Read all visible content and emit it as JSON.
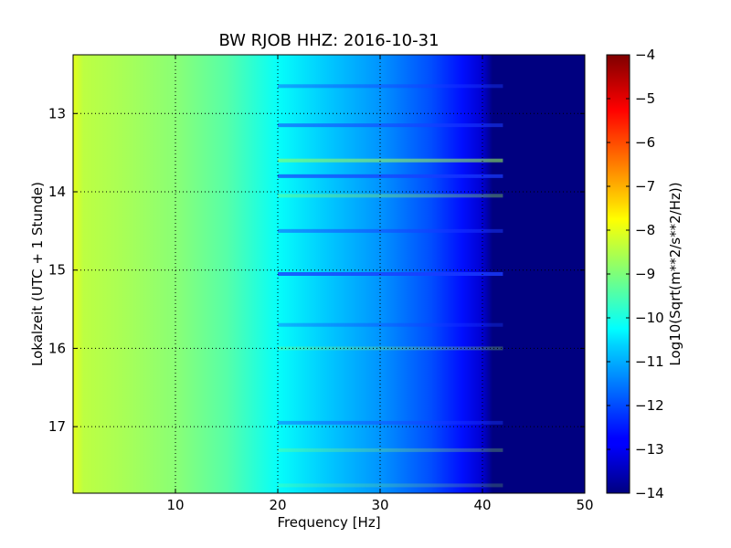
{
  "chart_data": {
    "type": "heatmap",
    "title": "BW RJOB HHZ: 2016-10-31",
    "xlabel": "Frequency [Hz]",
    "ylabel": "Lokalzeit (UTC + 1 Stunde)",
    "colorbar_label": "Log10(Sqrt(m**2/s**2/Hz))",
    "xlim": [
      0,
      50
    ],
    "ylim": [
      17.85,
      12.25
    ],
    "y_axis_inverted": true,
    "xticks": [
      10,
      20,
      30,
      40,
      50
    ],
    "xtick_labels": [
      "10",
      "20",
      "30",
      "40",
      "50"
    ],
    "yticks": [
      13,
      14,
      15,
      16,
      17
    ],
    "ytick_labels": [
      "13",
      "14",
      "15",
      "16",
      "17"
    ],
    "clim": [
      -14,
      -4
    ],
    "cticks": [
      -4,
      -5,
      -6,
      -7,
      -8,
      -9,
      -10,
      -11,
      -12,
      -13,
      -14
    ],
    "ctick_labels": [
      "−4",
      "−5",
      "−6",
      "−7",
      "−8",
      "−9",
      "−10",
      "−11",
      "−12",
      "−13",
      "−14"
    ],
    "colormap": "jet",
    "grid": true,
    "value_profile_by_frequency": {
      "frequency_hz": [
        0,
        1,
        5,
        10,
        15,
        20,
        25,
        30,
        35,
        38,
        40,
        41,
        50
      ],
      "log10_amplitude": [
        -8.0,
        -8.4,
        -8.6,
        -8.9,
        -9.4,
        -10.2,
        -10.8,
        -11.3,
        -12.0,
        -12.6,
        -13.2,
        -14.0,
        -14.0
      ]
    },
    "horizontal_bands": [
      {
        "time": 12.65,
        "log10_offset": -0.6
      },
      {
        "time": 13.15,
        "log10_offset": -0.8
      },
      {
        "time": 13.6,
        "log10_offset": 0.8
      },
      {
        "time": 13.8,
        "log10_offset": -1.0
      },
      {
        "time": 14.05,
        "log10_offset": 0.5
      },
      {
        "time": 14.5,
        "log10_offset": -0.7
      },
      {
        "time": 15.05,
        "log10_offset": -1.2
      },
      {
        "time": 15.7,
        "log10_offset": -0.5
      },
      {
        "time": 16.0,
        "log10_offset": 0.4
      },
      {
        "time": 16.95,
        "log10_offset": -0.6
      },
      {
        "time": 17.3,
        "log10_offset": 0.4
      },
      {
        "time": 17.75,
        "log10_offset": 0.3
      }
    ]
  }
}
